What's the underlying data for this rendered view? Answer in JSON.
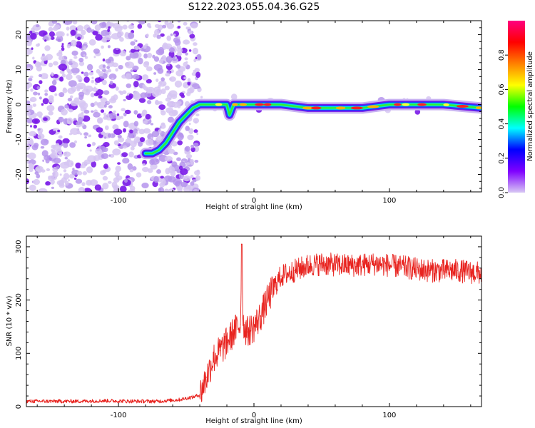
{
  "title": "S122.2023.055.04.36.G25",
  "chart_data": [
    {
      "type": "heatmap",
      "xlabel": "Height of straight line (km)",
      "ylabel": "Frequency (Hz)",
      "xlim": [
        -168,
        168
      ],
      "ylim": [
        -25,
        24
      ],
      "xticks": [
        -100,
        0,
        100
      ],
      "yticks": [
        -20,
        -10,
        0,
        10,
        20
      ],
      "grid": false,
      "ridge": {
        "x": [
          -80,
          -75,
          -70,
          -65,
          -60,
          -55,
          -50,
          -45,
          -40,
          -30,
          -20,
          -18,
          -15,
          -10,
          0,
          20,
          40,
          60,
          80,
          100,
          120,
          140,
          168
        ],
        "y": [
          -14,
          -14,
          -13,
          -11,
          -8,
          -5,
          -3,
          -1,
          0,
          0,
          0,
          -3,
          0,
          0,
          0,
          0,
          -1,
          -1,
          -1,
          0,
          0,
          0,
          -1
        ]
      },
      "colorbar": {
        "label": "Normalized spectral amplitude",
        "range": [
          0,
          1
        ],
        "ticks": [
          0.0,
          0.2,
          0.4,
          0.6,
          0.8
        ],
        "colors": [
          "#ffffff",
          "#d8c8f4",
          "#7f00ff",
          "#0000ff",
          "#00ffff",
          "#00ff00",
          "#ffff00",
          "#ff8000",
          "#ff0000",
          "#ff0080"
        ]
      }
    },
    {
      "type": "line",
      "xlabel": "Height of straight line (km)",
      "ylabel": "SNR (10 * v/v)",
      "xlim": [
        -168,
        168
      ],
      "ylim": [
        0,
        320
      ],
      "xticks": [
        -100,
        0,
        100
      ],
      "yticks": [
        0,
        100,
        200,
        300
      ],
      "grid": false,
      "series": [
        {
          "color": "#e8231f",
          "x": [
            -168,
            -150,
            -130,
            -110,
            -90,
            -70,
            -55,
            -45,
            -40,
            -35,
            -30,
            -25,
            -20,
            -15,
            -10,
            -9,
            -8,
            -5,
            0,
            5,
            10,
            15,
            20,
            30,
            40,
            50,
            60,
            70,
            80,
            90,
            100,
            110,
            120,
            130,
            140,
            150,
            160,
            168
          ],
          "y": [
            10,
            10,
            10,
            11,
            10,
            10,
            13,
            18,
            22,
            55,
            90,
            105,
            120,
            140,
            155,
            305,
            155,
            140,
            150,
            170,
            200,
            225,
            245,
            255,
            265,
            268,
            266,
            265,
            266,
            268,
            265,
            262,
            258,
            255,
            255,
            255,
            252,
            250
          ]
        }
      ]
    }
  ]
}
